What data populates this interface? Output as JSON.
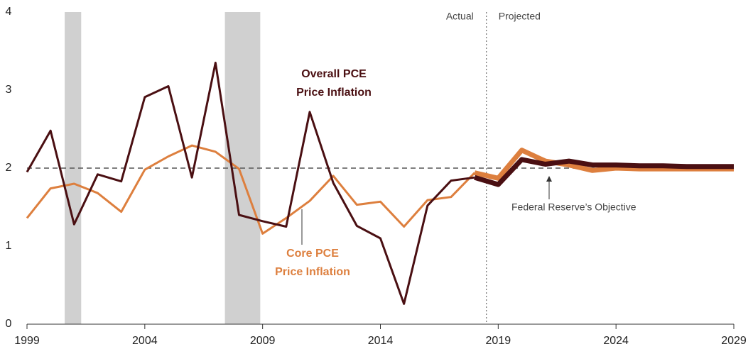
{
  "chart_data": {
    "type": "line",
    "x": [
      1999,
      2000,
      2001,
      2002,
      2003,
      2004,
      2005,
      2006,
      2007,
      2008,
      2009,
      2010,
      2011,
      2012,
      2013,
      2014,
      2015,
      2016,
      2017,
      2018,
      2019,
      2020,
      2021,
      2022,
      2023,
      2024,
      2025,
      2026,
      2027,
      2028,
      2029
    ],
    "series": [
      {
        "name": [
          "Overall PCE",
          "Price Inflation"
        ],
        "color": "#4a0f12",
        "values": [
          1.95,
          2.48,
          1.28,
          1.92,
          1.83,
          2.91,
          3.05,
          1.88,
          3.35,
          1.4,
          1.32,
          1.25,
          2.72,
          1.81,
          1.26,
          1.1,
          0.26,
          1.52,
          1.84,
          1.88,
          1.79,
          2.11,
          2.05,
          2.09,
          2.04,
          2.04,
          2.03,
          2.03,
          2.02,
          2.02,
          2.02
        ]
      },
      {
        "name": [
          "Core PCE",
          "Price Inflation"
        ],
        "color": "#dd7f3e",
        "values": [
          1.36,
          1.74,
          1.8,
          1.68,
          1.44,
          1.98,
          2.15,
          2.29,
          2.21,
          1.99,
          1.16,
          1.36,
          1.58,
          1.9,
          1.53,
          1.57,
          1.25,
          1.59,
          1.63,
          1.94,
          1.87,
          2.23,
          2.09,
          2.04,
          1.97,
          2.0,
          1.99,
          1.99,
          1.99,
          1.99,
          1.99
        ]
      }
    ],
    "projection_start": 2018,
    "divider_x": 2018.5,
    "divider_labels": [
      "Actual",
      "Projected"
    ],
    "shaded_ranges": [
      [
        2000.6,
        2001.3
      ],
      [
        2007.4,
        2008.9
      ]
    ],
    "objective": 2,
    "objective_label": "Federal Reserve’s Objective",
    "xlim": [
      1999,
      2029
    ],
    "xticks": [
      1999,
      2004,
      2009,
      2014,
      2019,
      2024,
      2029
    ],
    "ylim": [
      0,
      4
    ],
    "yticks": [
      0,
      1,
      2,
      3,
      4
    ]
  }
}
